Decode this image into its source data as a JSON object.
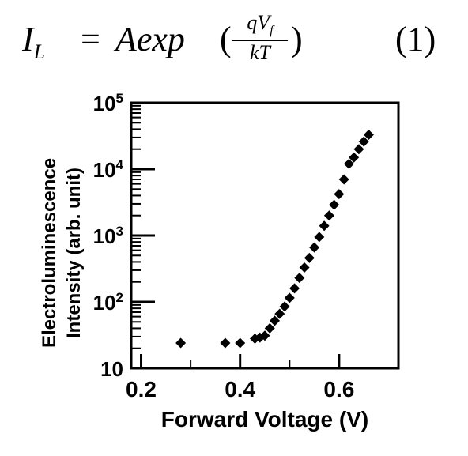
{
  "equation": {
    "lhs": "I",
    "lhs_sub": "L",
    "equals": "=",
    "rhs_prefix": "Aexp",
    "paren_open": "(",
    "numerator": "qV",
    "numerator_sub": "f",
    "denominator": "kT",
    "paren_close": ")",
    "number": "(1)"
  },
  "chart_data": {
    "type": "scatter",
    "xlabel": "Forward Voltage  (V)",
    "ylabel_line1": "Electroluminescence",
    "ylabel_line2": "Intensity (arb. unit)",
    "xlim": [
      0.18,
      0.72
    ],
    "ylim": [
      10,
      100000
    ],
    "y_scale": "log",
    "x_ticks": [
      {
        "value": 0.2,
        "label": "0.2"
      },
      {
        "value": 0.4,
        "label": "0.4"
      },
      {
        "value": 0.6,
        "label": "0.6"
      }
    ],
    "y_ticks": [
      {
        "value": 10,
        "base": "10",
        "exp": ""
      },
      {
        "value": 100,
        "base": "10",
        "exp": "2"
      },
      {
        "value": 1000,
        "base": "10",
        "exp": "3"
      },
      {
        "value": 10000,
        "base": "10",
        "exp": "4"
      },
      {
        "value": 100000,
        "base": "10",
        "exp": "5"
      }
    ],
    "marker_color": "#000000",
    "grid": false,
    "points": [
      {
        "x": 0.28,
        "y": 24
      },
      {
        "x": 0.37,
        "y": 24
      },
      {
        "x": 0.4,
        "y": 24
      },
      {
        "x": 0.43,
        "y": 28
      },
      {
        "x": 0.44,
        "y": 29
      },
      {
        "x": 0.45,
        "y": 31
      },
      {
        "x": 0.46,
        "y": 40
      },
      {
        "x": 0.47,
        "y": 52
      },
      {
        "x": 0.48,
        "y": 66
      },
      {
        "x": 0.49,
        "y": 85
      },
      {
        "x": 0.5,
        "y": 115
      },
      {
        "x": 0.51,
        "y": 160
      },
      {
        "x": 0.52,
        "y": 230
      },
      {
        "x": 0.53,
        "y": 330
      },
      {
        "x": 0.54,
        "y": 460
      },
      {
        "x": 0.55,
        "y": 660
      },
      {
        "x": 0.56,
        "y": 950
      },
      {
        "x": 0.57,
        "y": 1400
      },
      {
        "x": 0.58,
        "y": 2000
      },
      {
        "x": 0.59,
        "y": 2900
      },
      {
        "x": 0.6,
        "y": 4200
      },
      {
        "x": 0.61,
        "y": 7000
      },
      {
        "x": 0.62,
        "y": 12000
      },
      {
        "x": 0.63,
        "y": 15000
      },
      {
        "x": 0.64,
        "y": 20000
      },
      {
        "x": 0.65,
        "y": 26000
      },
      {
        "x": 0.66,
        "y": 33000
      }
    ]
  }
}
